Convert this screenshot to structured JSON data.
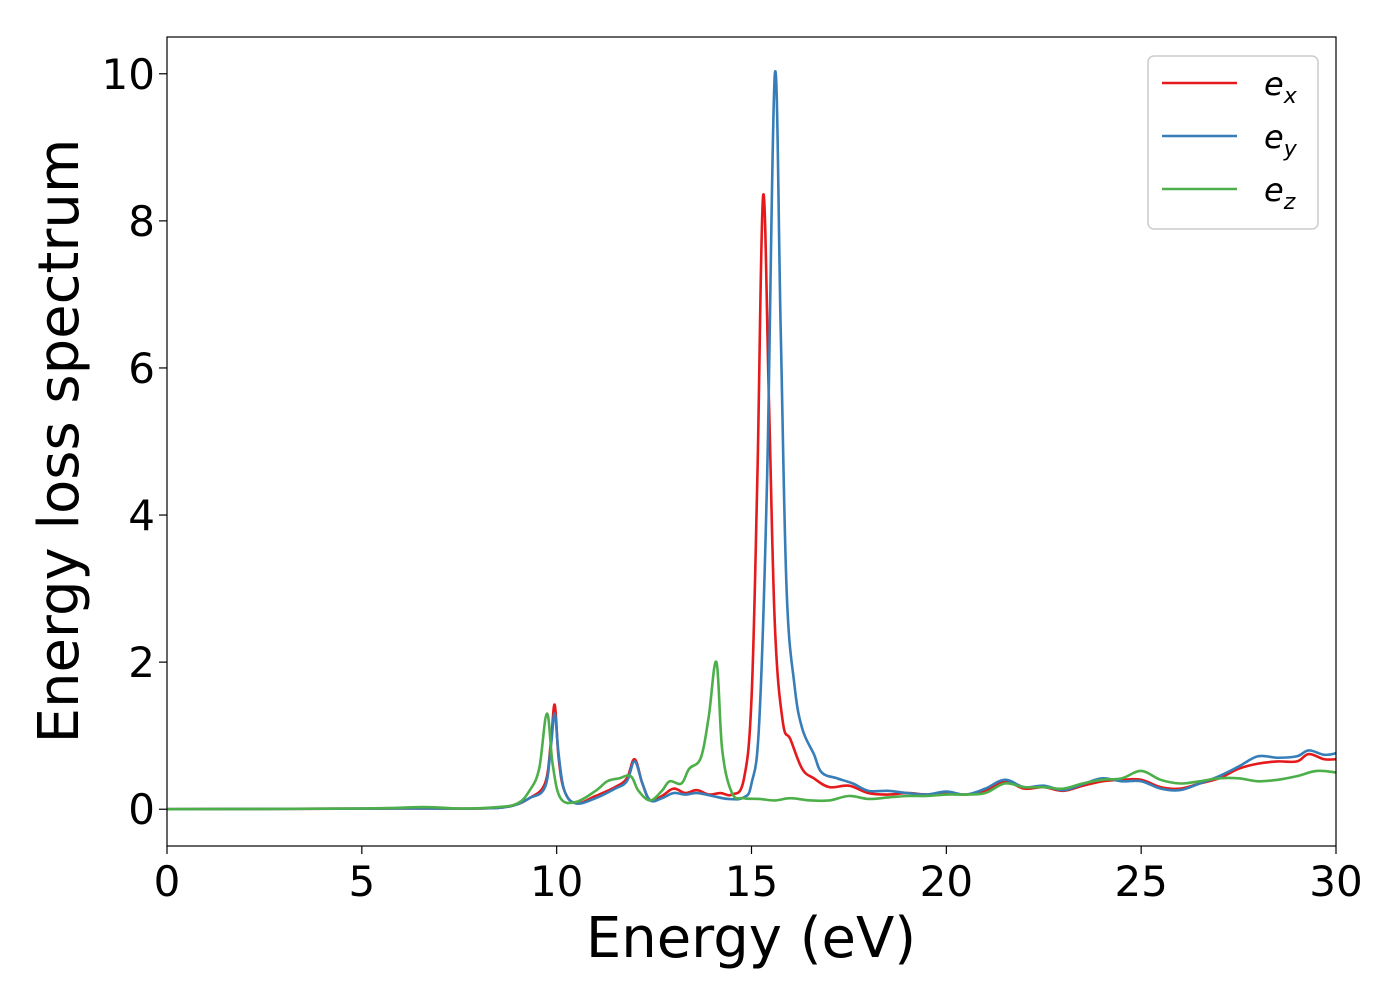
{
  "chart_data": {
    "type": "line",
    "xlabel": "Energy (eV)",
    "ylabel": "Energy loss spectrum",
    "xlim": [
      0,
      30
    ],
    "ylim": [
      -0.5,
      10.5
    ],
    "xticks": [
      0,
      5,
      10,
      15,
      20,
      25,
      30
    ],
    "yticks": [
      0,
      2,
      4,
      6,
      8,
      10
    ],
    "grid": false,
    "legend_position": "top-right",
    "series": [
      {
        "name": "e_x",
        "label_base": "e",
        "label_sub": "x",
        "color": "#e41a1c",
        "points": [
          [
            0,
            0
          ],
          [
            6,
            0.01
          ],
          [
            8,
            0.01
          ],
          [
            8.8,
            0.04
          ],
          [
            9.3,
            0.15
          ],
          [
            9.7,
            0.35
          ],
          [
            9.85,
            0.9
          ],
          [
            9.95,
            1.42
          ],
          [
            10.05,
            0.7
          ],
          [
            10.2,
            0.25
          ],
          [
            10.5,
            0.08
          ],
          [
            11,
            0.18
          ],
          [
            11.5,
            0.3
          ],
          [
            11.8,
            0.42
          ],
          [
            12.0,
            0.68
          ],
          [
            12.2,
            0.35
          ],
          [
            12.4,
            0.12
          ],
          [
            12.7,
            0.18
          ],
          [
            13.0,
            0.28
          ],
          [
            13.3,
            0.22
          ],
          [
            13.6,
            0.26
          ],
          [
            13.9,
            0.2
          ],
          [
            14.2,
            0.22
          ],
          [
            14.5,
            0.2
          ],
          [
            14.8,
            0.4
          ],
          [
            15.0,
            1.5
          ],
          [
            15.15,
            4.5
          ],
          [
            15.3,
            8.35
          ],
          [
            15.45,
            5.5
          ],
          [
            15.6,
            2.5
          ],
          [
            15.8,
            1.2
          ],
          [
            16.0,
            0.95
          ],
          [
            16.3,
            0.55
          ],
          [
            16.6,
            0.42
          ],
          [
            17.0,
            0.3
          ],
          [
            17.5,
            0.32
          ],
          [
            18.0,
            0.22
          ],
          [
            18.5,
            0.2
          ],
          [
            19.0,
            0.22
          ],
          [
            19.5,
            0.2
          ],
          [
            20.0,
            0.22
          ],
          [
            20.5,
            0.2
          ],
          [
            21.0,
            0.25
          ],
          [
            21.5,
            0.38
          ],
          [
            22.0,
            0.28
          ],
          [
            22.5,
            0.3
          ],
          [
            23.0,
            0.25
          ],
          [
            23.5,
            0.32
          ],
          [
            24.0,
            0.38
          ],
          [
            24.5,
            0.4
          ],
          [
            25.0,
            0.4
          ],
          [
            25.5,
            0.3
          ],
          [
            26.0,
            0.28
          ],
          [
            26.5,
            0.35
          ],
          [
            27.0,
            0.42
          ],
          [
            27.5,
            0.55
          ],
          [
            28.0,
            0.62
          ],
          [
            28.5,
            0.65
          ],
          [
            29.0,
            0.65
          ],
          [
            29.3,
            0.75
          ],
          [
            29.7,
            0.68
          ],
          [
            30.0,
            0.68
          ]
        ]
      },
      {
        "name": "e_y",
        "label_base": "e",
        "label_sub": "y",
        "color": "#377eb8",
        "points": [
          [
            0,
            0
          ],
          [
            6,
            0.01
          ],
          [
            8,
            0.01
          ],
          [
            8.8,
            0.04
          ],
          [
            9.3,
            0.15
          ],
          [
            9.7,
            0.3
          ],
          [
            9.85,
            0.85
          ],
          [
            9.95,
            1.3
          ],
          [
            10.05,
            0.75
          ],
          [
            10.2,
            0.25
          ],
          [
            10.5,
            0.08
          ],
          [
            11,
            0.15
          ],
          [
            11.5,
            0.28
          ],
          [
            11.8,
            0.38
          ],
          [
            12.0,
            0.65
          ],
          [
            12.2,
            0.35
          ],
          [
            12.4,
            0.12
          ],
          [
            12.7,
            0.15
          ],
          [
            13.0,
            0.22
          ],
          [
            13.3,
            0.2
          ],
          [
            13.6,
            0.22
          ],
          [
            14.0,
            0.18
          ],
          [
            14.4,
            0.14
          ],
          [
            14.8,
            0.16
          ],
          [
            15.0,
            0.35
          ],
          [
            15.2,
            1.2
          ],
          [
            15.4,
            4.5
          ],
          [
            15.6,
            10.0
          ],
          [
            15.75,
            6.5
          ],
          [
            15.9,
            3.0
          ],
          [
            16.1,
            1.7
          ],
          [
            16.3,
            1.1
          ],
          [
            16.6,
            0.75
          ],
          [
            16.8,
            0.5
          ],
          [
            17.2,
            0.42
          ],
          [
            17.6,
            0.35
          ],
          [
            18.0,
            0.25
          ],
          [
            18.5,
            0.25
          ],
          [
            19.0,
            0.22
          ],
          [
            19.5,
            0.2
          ],
          [
            20.0,
            0.24
          ],
          [
            20.5,
            0.2
          ],
          [
            21.0,
            0.28
          ],
          [
            21.5,
            0.4
          ],
          [
            22.0,
            0.3
          ],
          [
            22.5,
            0.32
          ],
          [
            23.0,
            0.26
          ],
          [
            23.5,
            0.34
          ],
          [
            24.0,
            0.42
          ],
          [
            24.5,
            0.38
          ],
          [
            25.0,
            0.38
          ],
          [
            25.5,
            0.28
          ],
          [
            26.0,
            0.26
          ],
          [
            26.5,
            0.35
          ],
          [
            27.0,
            0.45
          ],
          [
            27.5,
            0.58
          ],
          [
            28.0,
            0.72
          ],
          [
            28.5,
            0.7
          ],
          [
            29.0,
            0.72
          ],
          [
            29.3,
            0.8
          ],
          [
            29.7,
            0.74
          ],
          [
            30.0,
            0.76
          ]
        ]
      },
      {
        "name": "e_z",
        "label_base": "e",
        "label_sub": "z",
        "color": "#4daf4a",
        "points": [
          [
            0,
            0
          ],
          [
            5,
            0.01
          ],
          [
            6.6,
            0.03
          ],
          [
            7.5,
            0.01
          ],
          [
            8.5,
            0.03
          ],
          [
            9.0,
            0.08
          ],
          [
            9.3,
            0.25
          ],
          [
            9.55,
            0.55
          ],
          [
            9.75,
            1.3
          ],
          [
            9.9,
            0.6
          ],
          [
            10.1,
            0.15
          ],
          [
            10.5,
            0.1
          ],
          [
            11,
            0.25
          ],
          [
            11.3,
            0.38
          ],
          [
            11.6,
            0.42
          ],
          [
            11.9,
            0.45
          ],
          [
            12.1,
            0.25
          ],
          [
            12.4,
            0.12
          ],
          [
            12.7,
            0.25
          ],
          [
            12.9,
            0.38
          ],
          [
            13.2,
            0.35
          ],
          [
            13.4,
            0.55
          ],
          [
            13.7,
            0.7
          ],
          [
            13.9,
            1.25
          ],
          [
            14.1,
            2.0
          ],
          [
            14.25,
            0.8
          ],
          [
            14.5,
            0.22
          ],
          [
            14.8,
            0.15
          ],
          [
            15.2,
            0.14
          ],
          [
            15.6,
            0.12
          ],
          [
            16.0,
            0.15
          ],
          [
            16.5,
            0.12
          ],
          [
            17.0,
            0.12
          ],
          [
            17.5,
            0.18
          ],
          [
            18.0,
            0.14
          ],
          [
            18.5,
            0.16
          ],
          [
            19.0,
            0.18
          ],
          [
            19.5,
            0.18
          ],
          [
            20.0,
            0.2
          ],
          [
            20.5,
            0.2
          ],
          [
            21.0,
            0.22
          ],
          [
            21.5,
            0.35
          ],
          [
            22.0,
            0.3
          ],
          [
            22.5,
            0.3
          ],
          [
            23.0,
            0.28
          ],
          [
            23.5,
            0.35
          ],
          [
            24.0,
            0.4
          ],
          [
            24.5,
            0.42
          ],
          [
            25.0,
            0.52
          ],
          [
            25.5,
            0.4
          ],
          [
            26.0,
            0.35
          ],
          [
            26.5,
            0.38
          ],
          [
            27.0,
            0.42
          ],
          [
            27.5,
            0.42
          ],
          [
            28.0,
            0.38
          ],
          [
            28.5,
            0.4
          ],
          [
            29.0,
            0.45
          ],
          [
            29.5,
            0.52
          ],
          [
            30.0,
            0.5
          ]
        ]
      }
    ]
  }
}
